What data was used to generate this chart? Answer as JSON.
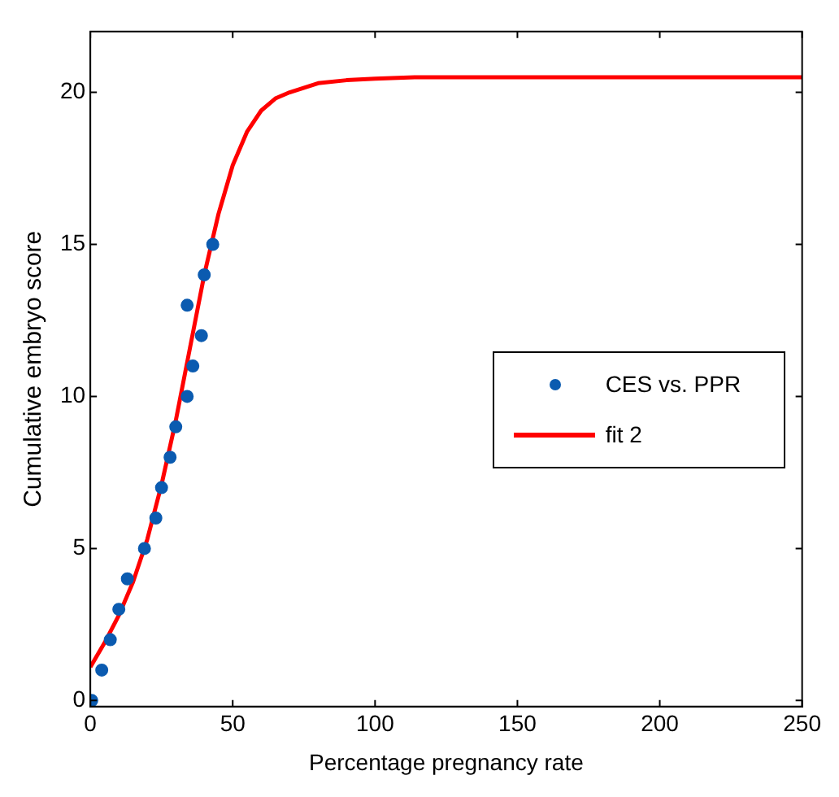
{
  "chart_data": {
    "type": "scatter",
    "xlabel": "Percentage pregnancy rate",
    "ylabel": "Cumulative embryo score",
    "xlim": [
      0,
      250
    ],
    "ylim": [
      -0.2,
      22
    ],
    "xticks": [
      0,
      50,
      100,
      150,
      200,
      250
    ],
    "yticks": [
      0,
      5,
      10,
      15,
      20
    ],
    "grid": false,
    "legend": "right",
    "series": [
      {
        "name": "CES vs. PPR",
        "type": "scatter",
        "color": "#0b5bb0",
        "marker": "circle",
        "x": [
          0.5,
          4,
          7,
          10,
          13,
          19,
          23,
          25,
          28,
          30,
          34,
          36,
          39,
          34,
          40,
          43
        ],
        "values": [
          0,
          1,
          2,
          3,
          4,
          5,
          6,
          7,
          8,
          9,
          10,
          11,
          12,
          13,
          14,
          15
        ]
      },
      {
        "name": "fit 2",
        "type": "line",
        "color": "#ff0000",
        "marker": "none",
        "line_style": "solid",
        "x": [
          0,
          5,
          10,
          15,
          20,
          25,
          30,
          35,
          40,
          45,
          50,
          55,
          60,
          65,
          70,
          80,
          90,
          100,
          115,
          150,
          200,
          250
        ],
        "values": [
          1.1,
          1.9,
          2.8,
          3.9,
          5.3,
          7.1,
          9.2,
          11.6,
          14,
          16,
          17.6,
          18.7,
          19.4,
          19.8,
          20.0,
          20.3,
          20.4,
          20.45,
          20.5,
          20.5,
          20.5,
          20.5
        ]
      }
    ]
  }
}
